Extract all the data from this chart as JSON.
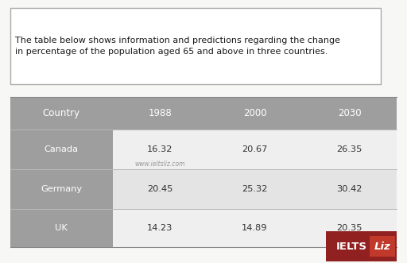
{
  "title_text": "The table below shows information and predictions regarding the change\nin percentage of the population aged 65 and above in three countries.",
  "headers": [
    "Country",
    "1988",
    "2000",
    "2030"
  ],
  "rows": [
    [
      "Canada",
      "16.32",
      "20.67",
      "26.35"
    ],
    [
      "Germany",
      "20.45",
      "25.32",
      "30.42"
    ],
    [
      "UK",
      "14.23",
      "14.89",
      "20.35"
    ]
  ],
  "watermark": "www.ieltsliz.com",
  "header_bg": "#9e9e9e",
  "header_text_color": "#ffffff",
  "country_col_bg": "#9e9e9e",
  "country_col_text_color": "#ffffff",
  "data_row_bg_1": "#efefef",
  "data_row_bg_2": "#e4e4e4",
  "data_row_bg_3": "#efefef",
  "data_text_color": "#333333",
  "title_box_facecolor": "#ffffff",
  "title_border_color": "#aaaaaa",
  "ielts_bg": "#912020",
  "ielts_text_color": "#ffffff",
  "liz_box_color": "#c0392b",
  "liz_text_color": "#ffffff",
  "background_color": "#f7f7f5",
  "title_fontsize": 8.0,
  "header_fontsize": 8.5,
  "cell_fontsize": 8.2,
  "watermark_fontsize": 5.5
}
